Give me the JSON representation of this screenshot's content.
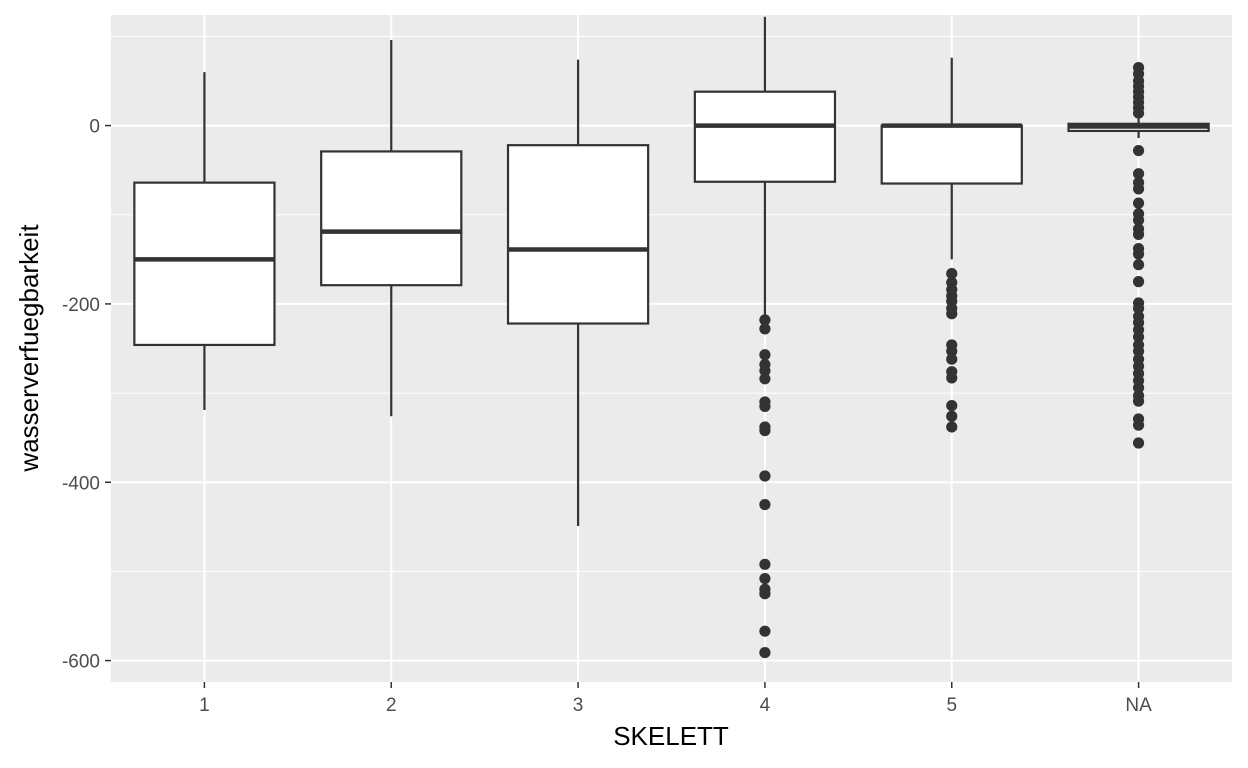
{
  "chart_data": {
    "type": "boxplot",
    "title": "",
    "xlabel": "SKELETT",
    "ylabel": "wasserverfuegbarkeit",
    "categories": [
      "1",
      "2",
      "3",
      "4",
      "5",
      "NA"
    ],
    "ylim": [
      -624,
      124
    ],
    "yticks": [
      0,
      -200,
      -400,
      -600
    ],
    "ytick_labels": [
      "0",
      "-200",
      "-400",
      "-600"
    ],
    "grid": true,
    "legend": "none",
    "colors": {
      "panel": "#ebebeb",
      "grid": "#ffffff",
      "box_fill": "#ffffff",
      "box_line": "#333333",
      "outlier": "#333333"
    },
    "boxes": [
      {
        "category": "1",
        "q1": -246,
        "median": -150,
        "q3": -64,
        "whisker_low": -319,
        "whisker_high": 60,
        "outliers": []
      },
      {
        "category": "2",
        "q1": -179,
        "median": -119,
        "q3": -29,
        "whisker_low": -326,
        "whisker_high": 96,
        "outliers": []
      },
      {
        "category": "3",
        "q1": -222,
        "median": -139,
        "q3": -22,
        "whisker_low": -449,
        "whisker_high": 74,
        "outliers": []
      },
      {
        "category": "4",
        "q1": -63,
        "median": 0,
        "q3": 38,
        "whisker_low": -214,
        "whisker_high": 122,
        "outliers": [
          -218,
          -228,
          -257,
          -268,
          -275,
          -284,
          -310,
          -315,
          -338,
          -342,
          -393,
          -425,
          -492,
          -508,
          -520,
          -525,
          -567,
          -591
        ]
      },
      {
        "category": "5",
        "q1": -65,
        "median": 0,
        "q3": 0,
        "whisker_low": -150,
        "whisker_high": 76,
        "outliers": [
          -166,
          -176,
          -184,
          -191,
          -197,
          -205,
          -211,
          -246,
          -253,
          -262,
          -276,
          -283,
          -314,
          -326,
          -338
        ]
      },
      {
        "category": "NA",
        "q1": -6,
        "median": -1,
        "q3": 2,
        "whisker_low": -14,
        "whisker_high": 9,
        "outliers": [
          65,
          58,
          50,
          44,
          38,
          32,
          26,
          20,
          14,
          -28,
          -54,
          -64,
          -71,
          -87,
          -99,
          -106,
          -116,
          -122,
          -138,
          -144,
          -156,
          -175,
          -199,
          -205,
          -214,
          -221,
          -229,
          -237,
          -246,
          -253,
          -262,
          -270,
          -278,
          -286,
          -294,
          -303,
          -309,
          -329,
          -336,
          -356
        ]
      }
    ]
  }
}
